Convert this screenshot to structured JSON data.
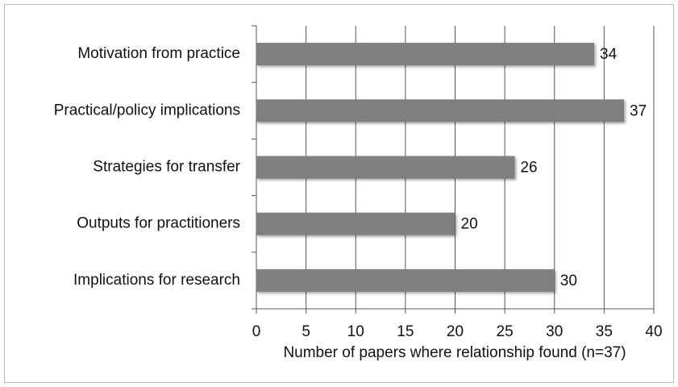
{
  "chart_data": {
    "type": "bar",
    "orientation": "horizontal",
    "categories": [
      "Motivation from practice",
      "Practical/policy implications",
      "Strategies for transfer",
      "Outputs for practitioners",
      "Implications for research"
    ],
    "values": [
      34,
      37,
      26,
      20,
      30
    ],
    "color": "#7f7f7f",
    "xlim": [
      0,
      40
    ],
    "xticks": [
      0,
      5,
      10,
      15,
      20,
      25,
      30,
      35,
      40
    ],
    "x_label": "Number of papers where relationship  found (n=37)",
    "grid": true
  }
}
